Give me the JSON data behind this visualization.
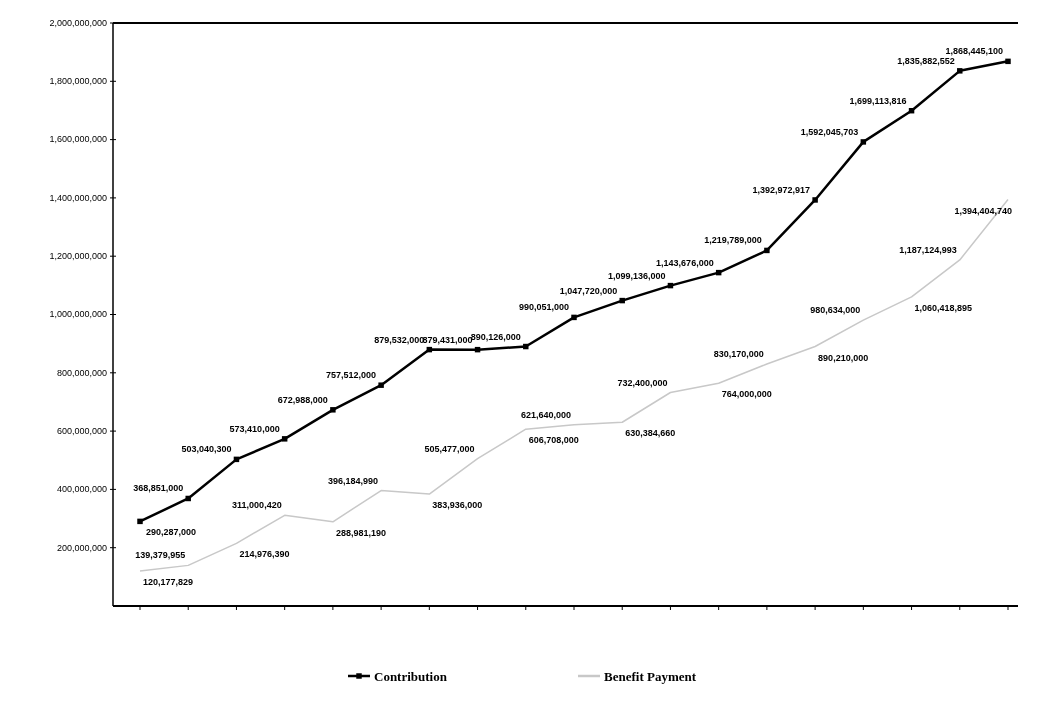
{
  "chart_data": {
    "type": "line",
    "categories": [
      null,
      null,
      null,
      null,
      null,
      null,
      null,
      null,
      null,
      null,
      null,
      null,
      null,
      null,
      null,
      null,
      null,
      null,
      null
    ],
    "ylim": [
      0,
      2000000000
    ],
    "yticks": [
      {
        "value": 200000000,
        "label": "200,000,000"
      },
      {
        "value": 400000000,
        "label": "400,000,000"
      },
      {
        "value": 600000000,
        "label": "600,000,000"
      },
      {
        "value": 800000000,
        "label": "800,000,000"
      },
      {
        "value": 1000000000,
        "label": "1,000,000,000"
      },
      {
        "value": 1200000000,
        "label": "1,200,000,000"
      },
      {
        "value": 1400000000,
        "label": "1,400,000,000"
      },
      {
        "value": 1600000000,
        "label": "1,600,000,000"
      },
      {
        "value": 1800000000,
        "label": "1,800,000,000"
      },
      {
        "value": 2000000000,
        "label": "2,000,000,000"
      }
    ],
    "series": [
      {
        "name": "Contribution",
        "color": "#000000",
        "marker": "square",
        "values": [
          290287000,
          368851000,
          503040300,
          573410000,
          672988000,
          757512000,
          879532000,
          879431000,
          890126000,
          990051000,
          1047720000,
          1099136000,
          1143676000,
          1219789000,
          1392972917,
          1592045703,
          1699113816,
          1835882552,
          1868445100
        ],
        "value_labels": [
          "290,287,000",
          "368,851,000",
          "503,040,300",
          "573,410,000",
          "672,988,000",
          "757,512,000",
          "879,532,000",
          "879,431,000",
          "890,126,000",
          "990,051,000",
          "1,047,720,000",
          "1,099,136,000",
          "1,143,676,000",
          "1,219,789,000",
          "1,392,972,917",
          "1,592,045,703",
          "1,699,113,816",
          "1,835,882,552",
          "1,868,445,100"
        ]
      },
      {
        "name": "Benefit Payment",
        "color": "#c8c8c8",
        "marker": "none",
        "values": [
          120177829,
          139379955,
          214976390,
          311000420,
          288981190,
          396184990,
          383936000,
          505477000,
          606708000,
          621640000,
          630384660,
          732400000,
          764000000,
          830170000,
          890210000,
          980634000,
          1060418895,
          1187124993,
          1394404740
        ],
        "value_labels": [
          "120,177,829",
          "139,379,955",
          "214,976,390",
          "311,000,420",
          "288,981,190",
          "396,184,990",
          "383,936,000",
          "505,477,000",
          "606,708,000",
          "621,640,000",
          "630,384,660",
          "732,400,000",
          "764,000,000",
          "830,170,000",
          "890,210,000",
          "980,634,000",
          "1,060,418,895",
          "1,187,124,993",
          "1,394,404,740"
        ]
      }
    ],
    "legend": "bottom",
    "grid": false
  }
}
